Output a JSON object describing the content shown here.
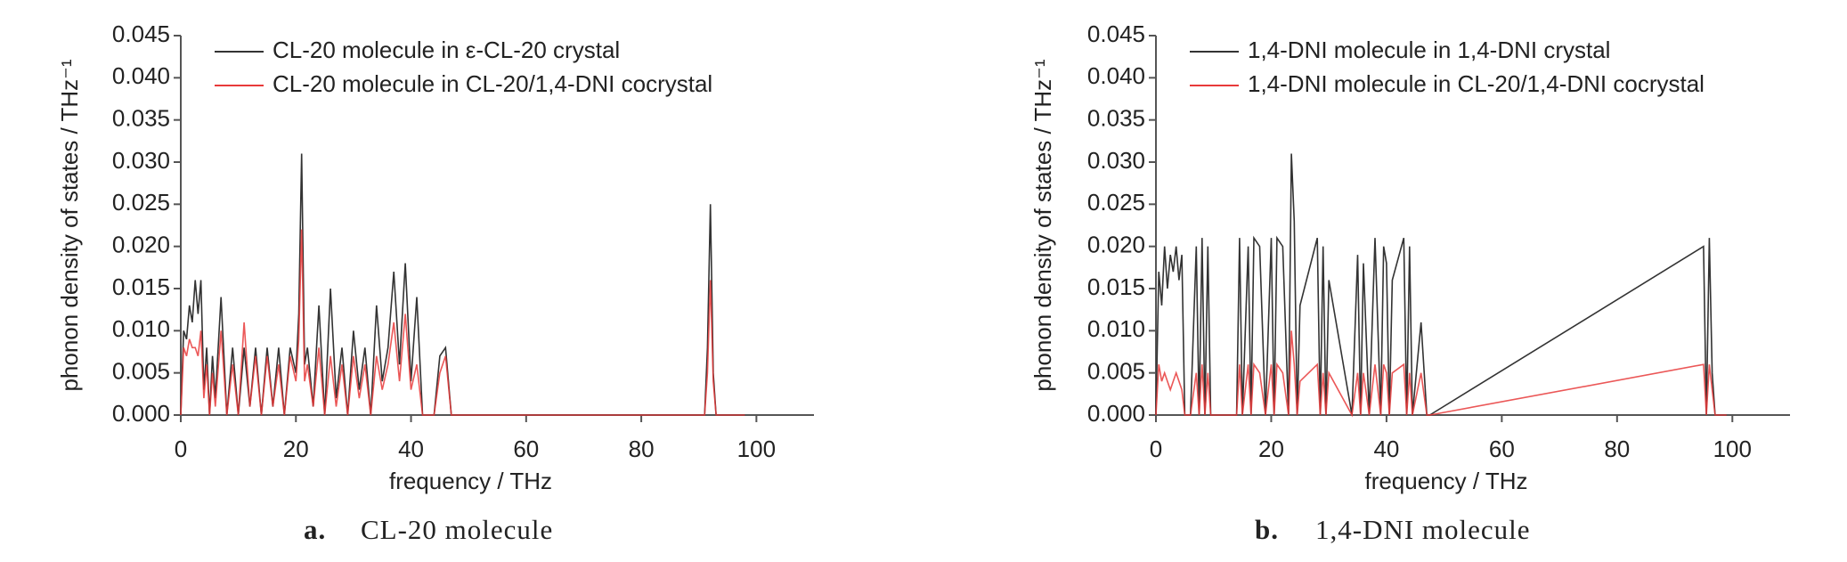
{
  "chart_data": [
    {
      "type": "line",
      "caption_label": "a.",
      "caption": "CL-20 molecule",
      "xlabel": "frequency / THz",
      "ylabel": "phonon density of states / THz⁻¹",
      "xlim": [
        0,
        110
      ],
      "xticks": [
        0,
        20,
        40,
        60,
        80,
        100
      ],
      "ylim": [
        0,
        0.045
      ],
      "yticks": [
        {
          "value": 0,
          "label": "0.000"
        },
        {
          "value": 0.005,
          "label": "0.005"
        },
        {
          "value": 0.01,
          "label": "0.010"
        },
        {
          "value": 0.015,
          "label": "0.015"
        },
        {
          "value": 0.02,
          "label": "0.020"
        },
        {
          "value": 0.025,
          "label": "0.025"
        },
        {
          "value": 0.03,
          "label": "0.030"
        },
        {
          "value": 0.035,
          "label": "0.035"
        },
        {
          "value": 0.04,
          "label": "0.040"
        },
        {
          "value": 0.045,
          "label": "0.045"
        }
      ],
      "legend": "upper left",
      "x": [
        0,
        0.5,
        1,
        1.5,
        2,
        2.5,
        3,
        3.5,
        4,
        4.5,
        5,
        5.5,
        6,
        7,
        8,
        9,
        10,
        11,
        12,
        13,
        14,
        15,
        16,
        17,
        18,
        19,
        20,
        20.5,
        21,
        21.5,
        22,
        23,
        24,
        25,
        26,
        27,
        28,
        29,
        30,
        31,
        32,
        33,
        34,
        35,
        36,
        37,
        38,
        39,
        40,
        41,
        42,
        44,
        45,
        46,
        47,
        48,
        91,
        91.5,
        92,
        92.5,
        93,
        98
      ],
      "series": [
        {
          "name": "CL-20 molecule in ε-CL-20 crystal",
          "color": "#333333",
          "values": [
            0,
            0.01,
            0.009,
            0.013,
            0.011,
            0.016,
            0.012,
            0.016,
            0.003,
            0.008,
            0,
            0.007,
            0.002,
            0.014,
            0,
            0.008,
            0,
            0.008,
            0.001,
            0.008,
            0,
            0.008,
            0.001,
            0.008,
            0,
            0.008,
            0.005,
            0.012,
            0.031,
            0.006,
            0.008,
            0.001,
            0.013,
            0,
            0.015,
            0.002,
            0.008,
            0,
            0.01,
            0.003,
            0.008,
            0,
            0.013,
            0.004,
            0.008,
            0.017,
            0.006,
            0.018,
            0.004,
            0.014,
            0,
            0,
            0.007,
            0.008,
            0,
            0,
            0,
            0.008,
            0.025,
            0.005,
            0,
            0
          ]
        },
        {
          "name": "CL-20 molecule in CL-20/1,4-DNI cocrystal",
          "color": "#e83a3a",
          "values": [
            0,
            0.008,
            0.007,
            0.009,
            0.008,
            0.008,
            0.007,
            0.01,
            0.002,
            0.006,
            0,
            0.005,
            0.001,
            0.01,
            0,
            0.006,
            0,
            0.011,
            0.001,
            0.007,
            0,
            0.007,
            0.001,
            0.006,
            0,
            0.007,
            0.004,
            0.009,
            0.022,
            0.004,
            0.006,
            0.001,
            0.008,
            0,
            0.007,
            0.001,
            0.006,
            0,
            0.007,
            0.002,
            0.006,
            0,
            0.007,
            0.003,
            0.006,
            0.011,
            0.004,
            0.012,
            0.003,
            0.006,
            0,
            0,
            0.005,
            0.007,
            0,
            0,
            0,
            0.005,
            0.016,
            0.004,
            0,
            0
          ]
        }
      ]
    },
    {
      "type": "line",
      "caption_label": "b.",
      "caption": "1,4-DNI molecule",
      "xlabel": "frequency / THz",
      "ylabel": "phonon density of states / THz⁻¹",
      "xlim": [
        0,
        110
      ],
      "xticks": [
        0,
        20,
        40,
        60,
        80,
        100
      ],
      "ylim": [
        0,
        0.045
      ],
      "yticks": [
        {
          "value": 0,
          "label": "0.000"
        },
        {
          "value": 0.005,
          "label": "0.005"
        },
        {
          "value": 0.01,
          "label": "0.010"
        },
        {
          "value": 0.015,
          "label": "0.015"
        },
        {
          "value": 0.02,
          "label": "0.020"
        },
        {
          "value": 0.025,
          "label": "0.025"
        },
        {
          "value": 0.03,
          "label": "0.030"
        },
        {
          "value": 0.035,
          "label": "0.035"
        },
        {
          "value": 0.04,
          "label": "0.040"
        },
        {
          "value": 0.045,
          "label": "0.045"
        }
      ],
      "legend": "upper left",
      "x": [
        0,
        0.5,
        1,
        1.5,
        2,
        2.5,
        3,
        3.5,
        4,
        4.5,
        5,
        6,
        7,
        7.5,
        8,
        8.5,
        9,
        9.5,
        14,
        14.5,
        15,
        16,
        16.5,
        17,
        18,
        19,
        20,
        20.5,
        21,
        22,
        23,
        23.5,
        24,
        24.5,
        25,
        28,
        28.5,
        29,
        29.5,
        30,
        34,
        35,
        35.5,
        36,
        37,
        38,
        39,
        39.5,
        40,
        40.5,
        41,
        43,
        43.5,
        44,
        44.5,
        46,
        47,
        47.5,
        95,
        95.5,
        96,
        96.5,
        97,
        99
      ],
      "series": [
        {
          "name": "1,4-DNI molecule in 1,4-DNI crystal",
          "color": "#333333",
          "values": [
            0,
            0.017,
            0.013,
            0.02,
            0.015,
            0.019,
            0.017,
            0.02,
            0.016,
            0.019,
            0,
            0,
            0.02,
            0,
            0.021,
            0,
            0.02,
            0,
            0,
            0.021,
            0,
            0.02,
            0,
            0.021,
            0.02,
            0,
            0.021,
            0,
            0.021,
            0.02,
            0,
            0.031,
            0.023,
            0,
            0.013,
            0.021,
            0,
            0.02,
            0,
            0.016,
            0,
            0.019,
            0,
            0.018,
            0,
            0.021,
            0,
            0.02,
            0.018,
            0,
            0.016,
            0.021,
            0,
            0.02,
            0,
            0.011,
            0,
            0,
            0.02,
            0,
            0.021,
            0.005,
            0,
            0
          ]
        },
        {
          "name": "1,4-DNI molecule in CL-20/1,4-DNI cocrystal",
          "color": "#e83a3a",
          "values": [
            0,
            0.006,
            0.004,
            0.005,
            0.004,
            0.003,
            0.004,
            0.005,
            0.004,
            0.003,
            0,
            0,
            0.005,
            0,
            0.006,
            0,
            0.005,
            0,
            0,
            0.006,
            0,
            0.006,
            0,
            0.006,
            0.005,
            0,
            0.006,
            0,
            0.006,
            0.005,
            0,
            0.01,
            0.006,
            0,
            0.004,
            0.006,
            0,
            0.005,
            0,
            0.005,
            0,
            0.005,
            0,
            0.005,
            0,
            0.006,
            0,
            0.006,
            0.005,
            0,
            0.005,
            0.006,
            0,
            0.005,
            0,
            0.005,
            0,
            0,
            0.006,
            0,
            0.006,
            0.003,
            0,
            0
          ]
        }
      ]
    }
  ]
}
